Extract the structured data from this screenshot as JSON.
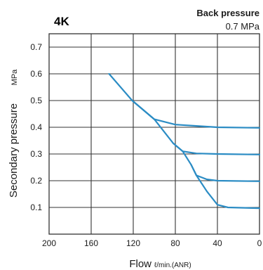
{
  "chart_data": {
    "type": "line",
    "series_label": "4K",
    "back_pressure": {
      "label": "Back pressure",
      "value": "0.7 MPa"
    },
    "xlabel": "Flow",
    "xunit": "ℓ/min.(ANR)",
    "ylabel": "Secondary pressure",
    "yunit": "MPa",
    "xlim": [
      200,
      0
    ],
    "ylim": [
      0,
      0.75
    ],
    "x_ticks": [
      200,
      160,
      120,
      80,
      40,
      0
    ],
    "y_ticks": [
      0.1,
      0.2,
      0.3,
      0.4,
      0.5,
      0.6,
      0.7
    ],
    "grid": true,
    "colors": {
      "series": "#2b8cc4",
      "grid": "#333333",
      "series_label": "#2b8cc4"
    },
    "series": [
      {
        "x": [
          143,
          121,
          100,
          80,
          60,
          40,
          0
        ],
        "y": [
          0.6,
          0.5,
          0.43,
          0.41,
          0.405,
          0.4,
          0.398
        ]
      },
      {
        "x": [
          121,
          100,
          82,
          73,
          60,
          40,
          0
        ],
        "y": [
          0.5,
          0.43,
          0.34,
          0.31,
          0.302,
          0.3,
          0.298
        ]
      },
      {
        "x": [
          82,
          73,
          65,
          60,
          50,
          40,
          0
        ],
        "y": [
          0.34,
          0.31,
          0.26,
          0.22,
          0.205,
          0.2,
          0.198
        ]
      },
      {
        "x": [
          65,
          60,
          50,
          40,
          30,
          20,
          0
        ],
        "y": [
          0.26,
          0.22,
          0.16,
          0.11,
          0.1,
          0.099,
          0.097
        ]
      }
    ]
  }
}
